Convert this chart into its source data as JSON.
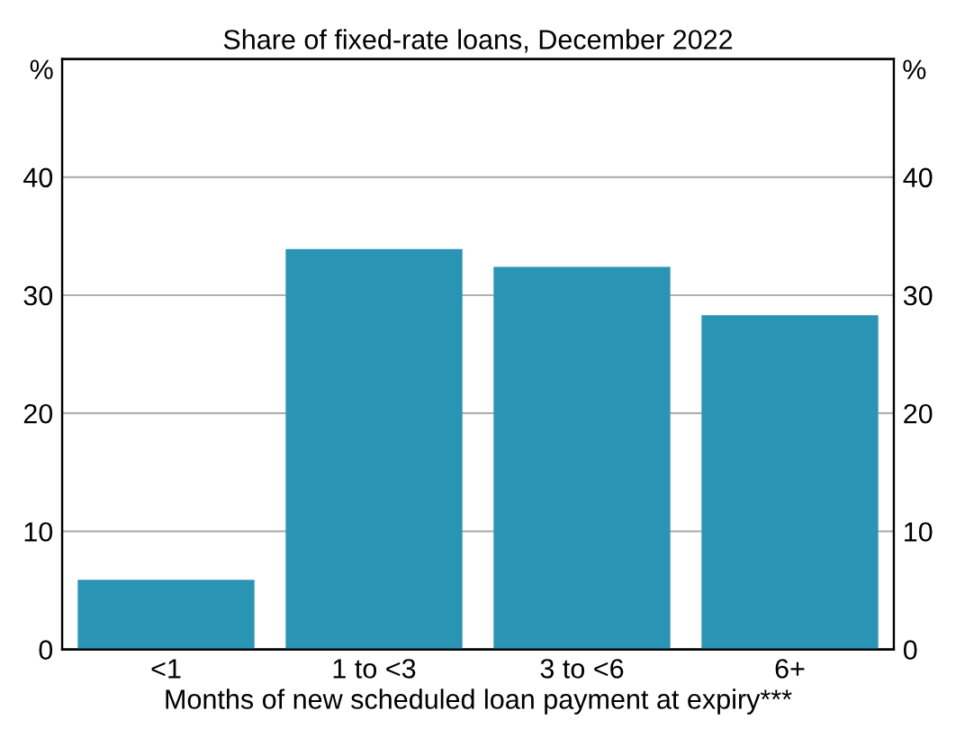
{
  "chart_data": {
    "type": "bar",
    "title": "Share of fixed-rate loans, December 2022",
    "xlabel": "Months of new scheduled loan payment at expiry***",
    "ylabel": "%",
    "y2label": "%",
    "categories": [
      "<1",
      "1 to <3",
      "3 to <6",
      "6+"
    ],
    "series": [
      {
        "color": "#2a94b5",
        "values": [
          5.9,
          33.9,
          32.4,
          28.3
        ]
      }
    ],
    "ylim": [
      0,
      50
    ],
    "yticks": [
      0,
      10,
      20,
      30,
      40
    ],
    "y2lim": [
      0,
      50
    ],
    "y2ticks": [
      0,
      10,
      20,
      30,
      40
    ],
    "grid": "y",
    "legend": false
  }
}
